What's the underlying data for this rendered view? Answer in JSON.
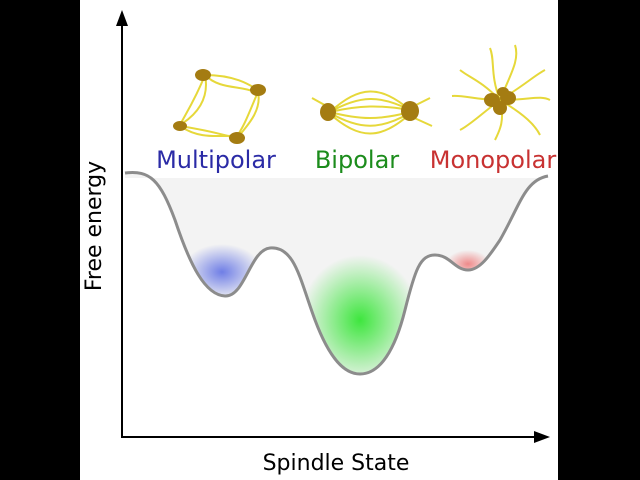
{
  "axes": {
    "y_label": "Free energy",
    "x_label": "Spindle State"
  },
  "states": [
    {
      "label": "Multipolar",
      "color": "#2b2ba6"
    },
    {
      "label": "Bipolar",
      "color": "#1c8c1c"
    },
    {
      "label": "Monopolar",
      "color": "#c83232"
    }
  ]
}
